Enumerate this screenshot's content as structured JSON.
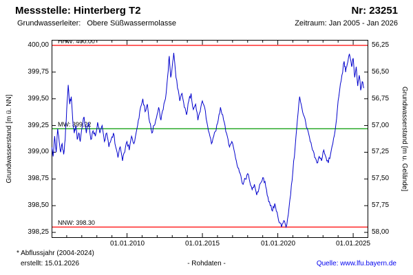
{
  "header": {
    "title": "Messstelle: Hinterberg T2",
    "number": "Nr: 23251",
    "aquifer_label": "Grundwasserleiter:",
    "aquifer_value": "Obere Süßwassermolasse",
    "period": "Zeitraum: Jan 2005 - Jan 2026"
  },
  "footer": {
    "note": "* Abflussjahr (2004-2024)",
    "created": "erstellt: 15.01.2026",
    "center": "- Rohdaten -",
    "source_label": "Quelle:",
    "source_link": "www.lfu.bayern.de"
  },
  "colors": {
    "series": "#0000cc",
    "hhw_nnw": "#ff0000",
    "mw": "#009900",
    "link": "#0000ee"
  },
  "chart_data": {
    "type": "line",
    "title": "",
    "ylabel_left": "Grundwasserstand [m ü. NN]",
    "ylabel_right": "Grundwasserstand [m u. Gelände]",
    "xlabel": "",
    "grid": false,
    "legend": "none",
    "x_range": [
      2005,
      2026
    ],
    "ylim_left": [
      398.25,
      400.0
    ],
    "ylim_right": [
      58.0,
      56.25
    ],
    "x_ticks": [
      {
        "value": 2010,
        "label": "01.01.2010"
      },
      {
        "value": 2015,
        "label": "01.01.2015"
      },
      {
        "value": 2020,
        "label": "01.01.2020"
      },
      {
        "value": 2025,
        "label": "01.01.2025"
      }
    ],
    "y_ticks": [
      {
        "value": 400.0,
        "left": "400,00",
        "right": "56,25"
      },
      {
        "value": 399.75,
        "left": "399,75",
        "right": "56,50"
      },
      {
        "value": 399.5,
        "left": "399,50",
        "right": "56,75"
      },
      {
        "value": 399.25,
        "left": "399,25",
        "right": "57,00"
      },
      {
        "value": 399.0,
        "left": "399,00",
        "right": "57,25"
      },
      {
        "value": 398.75,
        "left": "398,75",
        "right": "57,50"
      },
      {
        "value": 398.5,
        "left": "398,50",
        "right": "57,75"
      },
      {
        "value": 398.25,
        "left": "398,25",
        "right": "58,00"
      }
    ],
    "reference_lines": [
      {
        "name": "HHW",
        "label": "HHW: 400.00",
        "value": 400.0,
        "color": "#ff0000"
      },
      {
        "name": "MW",
        "label": "MW: 399.22",
        "value": 399.22,
        "color": "#009900"
      },
      {
        "name": "NNW",
        "label": "NNW: 398.30",
        "value": 398.3,
        "color": "#ff0000"
      }
    ],
    "render": {
      "jitter_amplitude_m": 0.022,
      "jitter_subdivisions": 3
    },
    "series": [
      {
        "name": "Grundwasserstand Rohdaten",
        "color": "#0000cc",
        "points": [
          [
            2005.0,
            399.05
          ],
          [
            2005.1,
            398.96
          ],
          [
            2005.2,
            399.15
          ],
          [
            2005.3,
            399.0
          ],
          [
            2005.4,
            399.22
          ],
          [
            2005.5,
            399.1
          ],
          [
            2005.6,
            399.0
          ],
          [
            2005.7,
            399.08
          ],
          [
            2005.8,
            398.98
          ],
          [
            2005.9,
            399.12
          ],
          [
            2006.0,
            399.4
          ],
          [
            2006.1,
            399.63
          ],
          [
            2006.2,
            399.45
          ],
          [
            2006.3,
            399.52
          ],
          [
            2006.4,
            399.3
          ],
          [
            2006.5,
            399.18
          ],
          [
            2006.6,
            399.25
          ],
          [
            2006.7,
            399.12
          ],
          [
            2006.8,
            399.18
          ],
          [
            2006.9,
            399.1
          ],
          [
            2007.0,
            399.22
          ],
          [
            2007.15,
            399.33
          ],
          [
            2007.3,
            399.18
          ],
          [
            2007.45,
            399.28
          ],
          [
            2007.6,
            399.12
          ],
          [
            2007.75,
            399.2
          ],
          [
            2007.9,
            399.15
          ],
          [
            2008.05,
            399.28
          ],
          [
            2008.2,
            399.18
          ],
          [
            2008.35,
            399.25
          ],
          [
            2008.5,
            399.1
          ],
          [
            2008.65,
            399.18
          ],
          [
            2008.8,
            399.05
          ],
          [
            2008.95,
            399.12
          ],
          [
            2009.1,
            399.18
          ],
          [
            2009.25,
            399.05
          ],
          [
            2009.4,
            398.95
          ],
          [
            2009.55,
            399.05
          ],
          [
            2009.7,
            398.92
          ],
          [
            2009.85,
            399.0
          ],
          [
            2010.0,
            399.1
          ],
          [
            2010.15,
            399.02
          ],
          [
            2010.3,
            399.15
          ],
          [
            2010.45,
            399.08
          ],
          [
            2010.6,
            399.18
          ],
          [
            2010.75,
            399.3
          ],
          [
            2010.9,
            399.42
          ],
          [
            2011.05,
            399.5
          ],
          [
            2011.2,
            399.38
          ],
          [
            2011.35,
            399.45
          ],
          [
            2011.5,
            399.28
          ],
          [
            2011.65,
            399.18
          ],
          [
            2011.8,
            399.25
          ],
          [
            2011.95,
            399.32
          ],
          [
            2012.1,
            399.42
          ],
          [
            2012.25,
            399.3
          ],
          [
            2012.4,
            399.4
          ],
          [
            2012.55,
            399.5
          ],
          [
            2012.7,
            399.72
          ],
          [
            2012.8,
            399.9
          ],
          [
            2012.9,
            399.7
          ],
          [
            2013.0,
            399.8
          ],
          [
            2013.1,
            399.93
          ],
          [
            2013.2,
            399.78
          ],
          [
            2013.35,
            399.6
          ],
          [
            2013.5,
            399.48
          ],
          [
            2013.65,
            399.55
          ],
          [
            2013.8,
            399.42
          ],
          [
            2013.95,
            399.35
          ],
          [
            2014.1,
            399.48
          ],
          [
            2014.25,
            399.55
          ],
          [
            2014.4,
            399.4
          ],
          [
            2014.55,
            399.45
          ],
          [
            2014.7,
            399.3
          ],
          [
            2014.85,
            399.38
          ],
          [
            2015.0,
            399.48
          ],
          [
            2015.15,
            399.42
          ],
          [
            2015.3,
            399.28
          ],
          [
            2015.45,
            399.18
          ],
          [
            2015.6,
            399.08
          ],
          [
            2015.75,
            399.15
          ],
          [
            2015.9,
            399.2
          ],
          [
            2016.05,
            399.3
          ],
          [
            2016.2,
            399.42
          ],
          [
            2016.35,
            399.35
          ],
          [
            2016.5,
            399.25
          ],
          [
            2016.65,
            399.15
          ],
          [
            2016.8,
            399.05
          ],
          [
            2016.95,
            399.1
          ],
          [
            2017.1,
            399.02
          ],
          [
            2017.25,
            398.92
          ],
          [
            2017.4,
            398.85
          ],
          [
            2017.55,
            398.78
          ],
          [
            2017.7,
            398.7
          ],
          [
            2017.85,
            398.75
          ],
          [
            2018.0,
            398.8
          ],
          [
            2018.15,
            398.72
          ],
          [
            2018.3,
            398.65
          ],
          [
            2018.45,
            398.7
          ],
          [
            2018.6,
            398.6
          ],
          [
            2018.75,
            398.66
          ],
          [
            2018.9,
            398.72
          ],
          [
            2019.05,
            398.76
          ],
          [
            2019.2,
            398.68
          ],
          [
            2019.35,
            398.58
          ],
          [
            2019.5,
            398.5
          ],
          [
            2019.65,
            398.45
          ],
          [
            2019.8,
            398.52
          ],
          [
            2019.95,
            398.44
          ],
          [
            2020.1,
            398.34
          ],
          [
            2020.25,
            398.3
          ],
          [
            2020.4,
            398.36
          ],
          [
            2020.55,
            398.3
          ],
          [
            2020.7,
            398.42
          ],
          [
            2020.85,
            398.6
          ],
          [
            2021.0,
            398.82
          ],
          [
            2021.15,
            399.05
          ],
          [
            2021.3,
            399.3
          ],
          [
            2021.45,
            399.52
          ],
          [
            2021.55,
            399.45
          ],
          [
            2021.7,
            399.35
          ],
          [
            2021.85,
            399.28
          ],
          [
            2022.0,
            399.2
          ],
          [
            2022.15,
            399.1
          ],
          [
            2022.3,
            399.02
          ],
          [
            2022.45,
            398.95
          ],
          [
            2022.6,
            398.9
          ],
          [
            2022.75,
            398.96
          ],
          [
            2022.9,
            398.92
          ],
          [
            2023.05,
            399.02
          ],
          [
            2023.2,
            398.95
          ],
          [
            2023.35,
            398.9
          ],
          [
            2023.5,
            398.98
          ],
          [
            2023.65,
            399.08
          ],
          [
            2023.8,
            399.2
          ],
          [
            2023.95,
            399.4
          ],
          [
            2024.1,
            399.58
          ],
          [
            2024.25,
            399.72
          ],
          [
            2024.4,
            399.85
          ],
          [
            2024.5,
            399.75
          ],
          [
            2024.6,
            399.82
          ],
          [
            2024.75,
            399.92
          ],
          [
            2024.9,
            399.8
          ],
          [
            2025.0,
            399.88
          ],
          [
            2025.1,
            399.7
          ],
          [
            2025.2,
            399.8
          ],
          [
            2025.3,
            399.62
          ],
          [
            2025.4,
            399.72
          ],
          [
            2025.5,
            399.58
          ],
          [
            2025.6,
            399.66
          ],
          [
            2025.7,
            399.6
          ]
        ]
      }
    ]
  }
}
